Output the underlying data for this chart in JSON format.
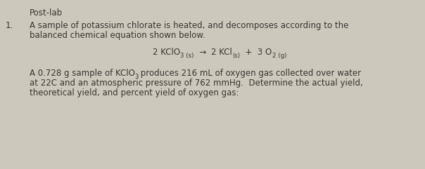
{
  "background_color": "#cdc8bc",
  "fig_width": 6.04,
  "fig_height": 2.41,
  "dpi": 100,
  "text_color": "#3a3530",
  "font_size": 8.5,
  "sub_font_size": 6.2,
  "postlab": "Post-lab",
  "number": "1.",
  "line1": "A sample of potassium chlorate is heated, and decomposes according to the",
  "line2": "balanced chemical equation shown below.",
  "eq_part1": "2 KClO",
  "eq_sub1": "3 (s)",
  "eq_arrow": "  →  ",
  "eq_part2": "2 KCl",
  "eq_sub2": "(s)",
  "eq_part3": "  +  3 O",
  "eq_sub3": "2 (g)",
  "para1a": "A 0.728 g sample of KClO",
  "para1_sub": "3",
  "para1b": " produces 216 mL of oxygen gas collected over water",
  "para2": "at 22C and an atmospheric pressure of 762 mmHg.  Determine the actual yield,",
  "para3": "theoretical yield, and percent yield of oxygen gas:"
}
